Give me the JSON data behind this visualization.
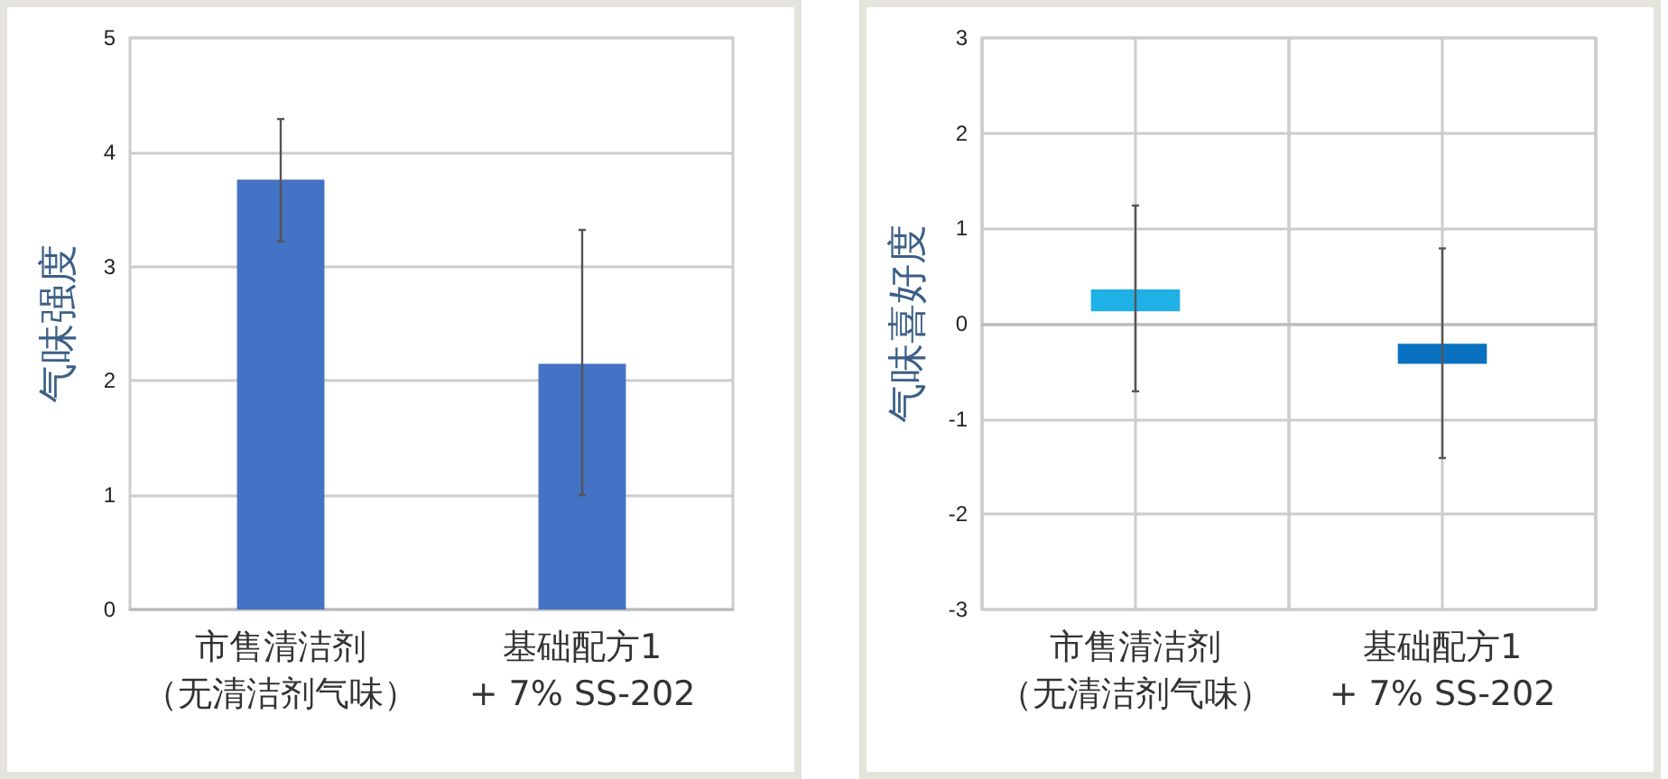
{
  "chart_data": [
    {
      "type": "bar",
      "ylabel": "气味强度",
      "categories": [
        "市售清洁剂（无清洁剂气味）",
        "基础配方1\n+ 7% SS-202"
      ],
      "values": [
        3.76,
        2.15
      ],
      "color": "#4472c4",
      "errors": [
        [
          3.22,
          4.29
        ],
        [
          1.0,
          3.32
        ]
      ],
      "ylim": [
        0,
        5
      ],
      "yticks": [
        0,
        1,
        2,
        3,
        4,
        5
      ],
      "grid": "y"
    },
    {
      "type": "bar",
      "ylabel": "气味喜好度",
      "categories": [
        "市售清洁剂（无清洁剂气味）",
        "基础配方1\n+ 7% SS-202"
      ],
      "values": [
        0.23,
        0.21
      ],
      "base": [
        0.13,
        -0.42
      ],
      "colors": [
        "#1fb0e6",
        "#0a70c0"
      ],
      "errors": [
        [
          -0.71,
          1.24
        ],
        [
          -1.41,
          0.79
        ]
      ],
      "ylim": [
        -3,
        3
      ],
      "yticks": [
        -3,
        -2,
        -1,
        0,
        1,
        2,
        3
      ],
      "grid": true
    }
  ]
}
